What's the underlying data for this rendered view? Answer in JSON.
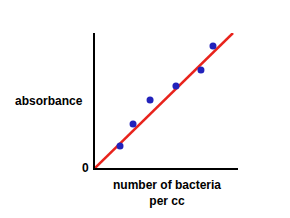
{
  "chart_data": {
    "type": "scatter",
    "x_label": "number of bacteria\nper cc",
    "y_label": "absorbance",
    "xlim": [
      0,
      10
    ],
    "ylim": [
      0,
      10
    ],
    "xticks": [],
    "yticks": [
      0
    ],
    "tick_labels": "y",
    "grid": false,
    "series": [
      {
        "type": "scatter",
        "marker": "circle",
        "color": "#2222bb",
        "x": [
          1.75,
          2.66,
          3.85,
          5.66,
          7.41,
          8.25
        ],
        "values": [
          1.63,
          3.26,
          5.04,
          6.07,
          7.26,
          9.04
        ]
      },
      {
        "type": "line",
        "line_style": "solid",
        "color": "#e8231c",
        "x": [
          0,
          9.65
        ],
        "values": [
          0,
          10
        ]
      }
    ]
  }
}
